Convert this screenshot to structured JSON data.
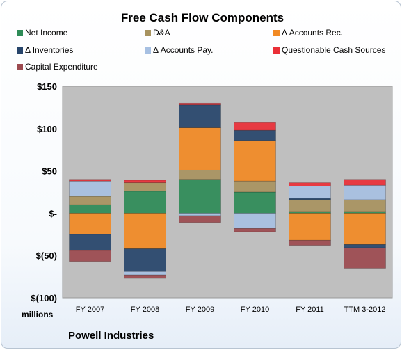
{
  "chart_data": {
    "type": "bar",
    "stacked": true,
    "title": "Free Cash Flow Components",
    "categories": [
      "FY 2007",
      "FY 2008",
      "FY 2009",
      "FY 2010",
      "FY 2011",
      "TTM 3-2012"
    ],
    "yticks": [
      "$150",
      "$100",
      "$50",
      "$-",
      "$(50)",
      "$(100)"
    ],
    "ylim": [
      -100,
      150
    ],
    "ylabel": "millions",
    "grid": false,
    "legend_position": "top",
    "colors": {
      "net_income": "#2e8b57",
      "da": "#a8935f",
      "accounts_rec": "#f28a24",
      "inventories": "#27456b",
      "accounts_pay": "#a7c0e2",
      "questionable": "#ea2f37",
      "capex": "#9c4a4f",
      "plot_bg": "#bfbfbf"
    },
    "series": [
      {
        "name": "Net Income",
        "key": "net_income",
        "values": [
          10,
          26,
          40,
          25,
          2,
          2
        ]
      },
      {
        "name": "D&A",
        "key": "da",
        "values": [
          10,
          10,
          11,
          13,
          14,
          14
        ]
      },
      {
        "name": "Δ Accounts Rec.",
        "key": "accounts_rec",
        "values": [
          -25,
          -42,
          50,
          48,
          -32,
          -37
        ]
      },
      {
        "name": "Δ Inventories",
        "key": "inventories",
        "values": [
          -19,
          -27,
          27,
          12,
          2,
          -4
        ]
      },
      {
        "name": "Δ Accounts Pay.",
        "key": "accounts_pay",
        "values": [
          18,
          -4,
          -3,
          -18,
          14,
          17
        ]
      },
      {
        "name": "Questionable Cash Sources",
        "key": "questionable",
        "values": [
          2,
          3,
          2,
          9,
          4,
          7
        ]
      },
      {
        "name": "Capital Expenditure",
        "key": "capex",
        "values": [
          -13,
          -4,
          -8,
          -4,
          -6,
          -24
        ]
      }
    ]
  },
  "footer": {
    "units": "millions",
    "company": "Powell Industries"
  }
}
